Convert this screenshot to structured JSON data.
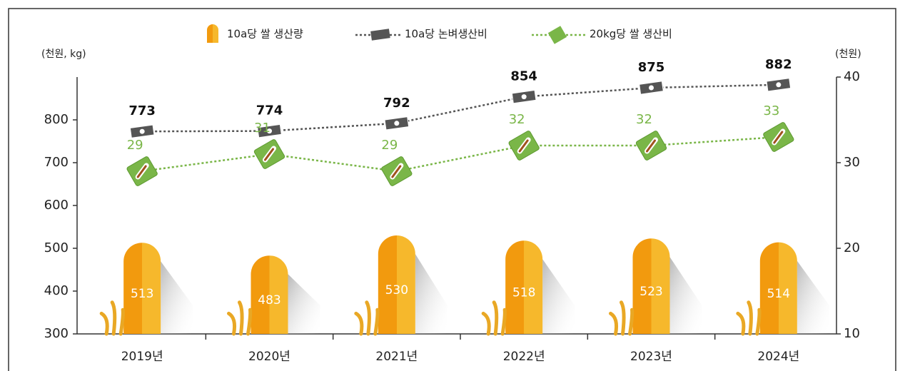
{
  "chart_data": {
    "type": "combo",
    "y_label": "(천원, kg)",
    "y2_label": "(천원)",
    "categories": [
      "2019년",
      "2020년",
      "2021년",
      "2022년",
      "2023년",
      "2024년"
    ],
    "series": [
      {
        "name": "10a당 쌀 생산량",
        "type": "bar",
        "color": "#f29a0e",
        "values": [
          513,
          483,
          530,
          518,
          523,
          514
        ]
      },
      {
        "name": "10a당 논벼생산비",
        "type": "line",
        "color": "#555555",
        "values": [
          773,
          774,
          792,
          854,
          875,
          882
        ]
      },
      {
        "name": "20kg당 쌀 생산비",
        "type": "line",
        "color": "#7ab648",
        "axis": "y2",
        "values": [
          29,
          31,
          29,
          32,
          32,
          33
        ]
      }
    ],
    "ylim": [
      300,
      900
    ],
    "yticks": [
      300,
      400,
      500,
      600,
      700,
      800
    ],
    "y2lim": [
      10,
      40
    ],
    "y2ticks": [
      10,
      20,
      30,
      40
    ]
  }
}
